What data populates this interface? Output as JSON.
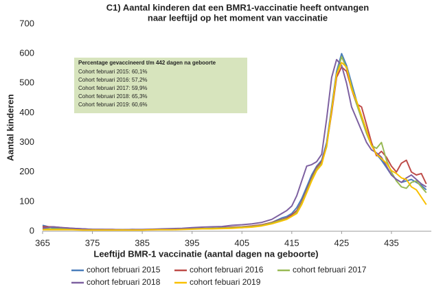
{
  "chart_data": {
    "type": "line",
    "title": [
      "C1) Aantal kinderen dat een BMR1-vaccinatie heeft ontvangen",
      "naar leeftijd op het moment van vaccinatie"
    ],
    "x_label": "Leeftijd BMR-1 vaccinatie (aantal dagen na geboorte)",
    "y_label": "Aantal kinderen",
    "annotation": {
      "title": "Percentage gevaccineerd t/m 442 dagen na geboorte",
      "lines": [
        "Cohort februari 2015: 60,1%",
        "Cohort februari 2016: 57,2%",
        "Cohort februari 2017: 59,9%",
        "Cohort februari 2018: 65,3%",
        "Cohort februari 2019: 60,6%"
      ]
    },
    "x": [
      365,
      367,
      369,
      371,
      373,
      375,
      377,
      379,
      381,
      383,
      385,
      387,
      389,
      391,
      393,
      395,
      397,
      399,
      401,
      403,
      405,
      407,
      409,
      411,
      413,
      414,
      415,
      416,
      417,
      418,
      419,
      420,
      421,
      422,
      423,
      424,
      425,
      426,
      427,
      428,
      429,
      430,
      431,
      432,
      433,
      434,
      435,
      436,
      437,
      438,
      439,
      440,
      441,
      442
    ],
    "xlim": [
      365,
      443
    ],
    "xticks": [
      365,
      375,
      385,
      395,
      405,
      415,
      425,
      435
    ],
    "ylim": [
      0,
      700
    ],
    "yticks": [
      0,
      100,
      200,
      300,
      400,
      500,
      600,
      700
    ],
    "grid": false,
    "series": [
      {
        "name": "cohort februari 2015",
        "color": "#4a7ebb",
        "values": [
          20,
          12,
          10,
          8,
          8,
          6,
          6,
          5,
          5,
          6,
          5,
          6,
          6,
          7,
          8,
          8,
          9,
          10,
          10,
          12,
          12,
          15,
          20,
          30,
          45,
          50,
          60,
          80,
          110,
          150,
          190,
          220,
          240,
          300,
          420,
          540,
          600,
          560,
          500,
          440,
          390,
          340,
          290,
          260,
          240,
          215,
          190,
          175,
          165,
          170,
          175,
          165,
          155,
          140
        ]
      },
      {
        "name": "cohort februari 2016",
        "color": "#be4b48",
        "values": [
          15,
          15,
          12,
          10,
          8,
          6,
          6,
          6,
          5,
          5,
          5,
          5,
          6,
          6,
          7,
          8,
          9,
          10,
          12,
          14,
          15,
          18,
          22,
          30,
          40,
          45,
          55,
          70,
          100,
          140,
          180,
          215,
          235,
          290,
          400,
          520,
          555,
          540,
          480,
          430,
          420,
          360,
          300,
          255,
          270,
          250,
          220,
          200,
          230,
          240,
          200,
          190,
          195,
          160
        ]
      },
      {
        "name": "cohort februari 2017",
        "color": "#98b954",
        "values": [
          10,
          8,
          8,
          8,
          6,
          6,
          5,
          5,
          5,
          5,
          5,
          6,
          6,
          6,
          7,
          8,
          9,
          10,
          11,
          12,
          14,
          16,
          20,
          28,
          38,
          42,
          50,
          65,
          95,
          135,
          175,
          210,
          230,
          285,
          410,
          530,
          590,
          550,
          490,
          430,
          380,
          330,
          290,
          280,
          300,
          240,
          200,
          170,
          150,
          145,
          165,
          170,
          150,
          130
        ]
      },
      {
        "name": "cohort februari 2018",
        "color": "#7d60a0",
        "values": [
          10,
          15,
          12,
          10,
          8,
          6,
          6,
          6,
          5,
          6,
          6,
          7,
          8,
          9,
          10,
          12,
          14,
          15,
          16,
          20,
          22,
          25,
          30,
          40,
          60,
          70,
          85,
          120,
          170,
          220,
          225,
          235,
          260,
          380,
          520,
          580,
          560,
          500,
          420,
          380,
          340,
          300,
          275,
          265,
          250,
          220,
          190,
          175,
          165,
          180,
          190,
          175,
          160,
          150
        ]
      },
      {
        "name": "cohort febuari 2019",
        "color": "#f9c000",
        "values": [
          5,
          5,
          5,
          5,
          4,
          4,
          4,
          4,
          4,
          4,
          4,
          5,
          5,
          5,
          6,
          7,
          8,
          8,
          9,
          10,
          12,
          14,
          18,
          25,
          35,
          40,
          50,
          60,
          90,
          130,
          170,
          205,
          225,
          290,
          410,
          530,
          570,
          555,
          480,
          440,
          390,
          340,
          290,
          260,
          245,
          230,
          205,
          195,
          180,
          175,
          150,
          140,
          115,
          90
        ]
      }
    ]
  }
}
